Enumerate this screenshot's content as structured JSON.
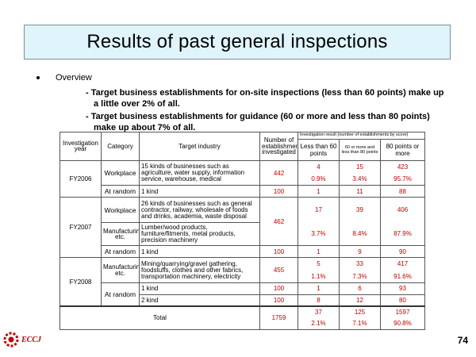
{
  "title": "Results of past general inspections",
  "bullet": "Overview",
  "points": [
    {
      "line1": "- Target business establishments for on-site inspections (less than 60 points) make up",
      "line2": "a little over 2% of all."
    },
    {
      "line1": "- Target business establishments for guidance (60 or more and less than 80 points)",
      "line2": "make up about 7% of all."
    }
  ],
  "table": {
    "headers": {
      "year": "Investigation year",
      "category": "Category",
      "industry": "Target industry",
      "count": "Number of establishments investigated",
      "result": "Investigation result (number of establishments by score)",
      "lt60": "Less than 60 points",
      "mid": "60 or more and less than 80 points",
      "ge80": "80 points or more"
    },
    "fy2006": {
      "year": "FY2006",
      "workplace": "Workplace",
      "wp_desc": "15 kinds of businesses such as agriculture, water supply, information service, warehouse, medical",
      "wp_count": "442",
      "wp_a": "4",
      "wp_a_pct": "0.9%",
      "wp_b": "15",
      "wp_b_pct": "3.4%",
      "wp_c": "423",
      "wp_c_pct": "95.7%",
      "random": "At random",
      "r_desc": "1 kind",
      "r_count": "100",
      "r_a": "1",
      "r_b": "11",
      "r_c": "88"
    },
    "fy2007": {
      "year": "FY2007",
      "workplace": "Workplace",
      "wp_desc": "26 kinds of businesses such as general contractor, railway, wholesale of foods and drinks, academia, waste disposal",
      "manufacturing": "Manufacturing, etc.",
      "mf_desc": "Lumber/wood products, furniture/fitments, metal products, precision machinery",
      "count": "462",
      "a": "17",
      "a_pct": "3.7%",
      "b": "39",
      "b_pct": "8.4%",
      "c": "406",
      "c_pct": "87.9%",
      "random": "At random",
      "r_desc": "1 kind",
      "r_count": "100",
      "r_a": "1",
      "r_b": "9",
      "r_c": "90"
    },
    "fy2008": {
      "year": "FY2008",
      "manufacturing": "Manufacturing, etc.",
      "mf_desc": "Mining/quarrying/gravel gathering, foodstuffs, clothes and other fabrics, transportation machinery, electricity",
      "mf_count": "455",
      "mf_a": "5",
      "mf_a_pct": "1.1%",
      "mf_b": "33",
      "mf_b_pct": "7.3%",
      "mf_c": "417",
      "mf_c_pct": "91.6%",
      "random": "At random",
      "r1_desc": "1 kind",
      "r1_count": "100",
      "r1_a": "1",
      "r1_b": "6",
      "r1_c": "93",
      "r2_desc": "2 kind",
      "r2_count": "100",
      "r2_a": "8",
      "r2_b": "12",
      "r2_c": "80"
    },
    "total": {
      "label": "Total",
      "count": "1759",
      "a": "37",
      "a_pct": "2.1%",
      "b": "125",
      "b_pct": "7.1%",
      "c": "1597",
      "c_pct": "90.8%"
    }
  },
  "footer": {
    "logo_text": "ECCJ",
    "page_number": "74"
  },
  "colors": {
    "title_bg": "#dff4fb",
    "accent_red": "#c00000"
  }
}
